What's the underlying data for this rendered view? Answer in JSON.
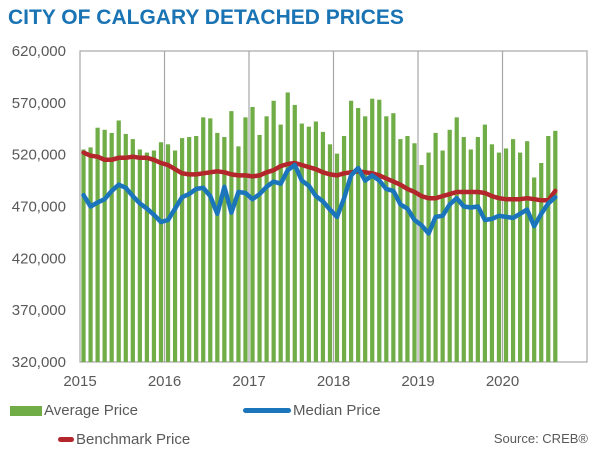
{
  "title": "CITY OF CALGARY DETACHED PRICES",
  "source": "Source: CREB®",
  "colors": {
    "title": "#1a74b4",
    "average": "#70ad47",
    "median": "#1b75bb",
    "benchmark": "#b3262c",
    "grid": "#a6a6a6",
    "text": "#595959"
  },
  "chart_data": {
    "type": "bar",
    "title": "CITY OF CALGARY DETACHED PRICES",
    "xlabel": "",
    "ylabel": "",
    "ylim": [
      320000,
      620000
    ],
    "yticks": [
      "620,000",
      "570,000",
      "520,000",
      "470,000",
      "420,000",
      "370,000",
      "320,000"
    ],
    "ytick_values": [
      620000,
      570000,
      520000,
      470000,
      420000,
      370000,
      320000
    ],
    "xticks": [
      "2015",
      "2016",
      "2017",
      "2018",
      "2019",
      "2020"
    ],
    "x_start": "2015-01",
    "x_end": "2020-07",
    "frequency": "monthly",
    "grid": "vertical year dividers",
    "legend": "bottom",
    "series": [
      {
        "name": "Average Price",
        "type": "bar",
        "values": [
          525000,
          527000,
          546000,
          544000,
          541000,
          553000,
          540000,
          535000,
          525000,
          522000,
          524000,
          532000,
          530000,
          524000,
          536000,
          537000,
          538000,
          556000,
          555000,
          541000,
          537000,
          562000,
          528000,
          556000,
          566000,
          539000,
          557000,
          572000,
          549000,
          580000,
          568000,
          550000,
          547000,
          552000,
          542000,
          530000,
          521000,
          538000,
          572000,
          565000,
          557000,
          574000,
          573000,
          557000,
          560000,
          535000,
          538000,
          531000,
          510000,
          522000,
          541000,
          524000,
          544000,
          556000,
          537000,
          525000,
          537000,
          549000,
          530000,
          522000,
          526000,
          535000,
          522000,
          533000,
          498000,
          512000,
          538000,
          543000
        ]
      },
      {
        "name": "Median Price",
        "type": "line",
        "values": [
          481000,
          470000,
          474000,
          477000,
          485000,
          491000,
          488000,
          480000,
          473000,
          468000,
          462000,
          455000,
          457000,
          468000,
          479000,
          482000,
          487000,
          488000,
          480000,
          463000,
          489000,
          464000,
          484000,
          483000,
          477000,
          482000,
          489000,
          494000,
          492000,
          505000,
          510000,
          495000,
          490000,
          480000,
          475000,
          467000,
          460000,
          478000,
          500000,
          507000,
          495000,
          500000,
          495000,
          487000,
          485000,
          472000,
          468000,
          457000,
          452000,
          444000,
          460000,
          461000,
          472000,
          478000,
          470000,
          469000,
          470000,
          457000,
          458000,
          461000,
          460000,
          459000,
          463000,
          467000,
          451000,
          463000,
          473000,
          479000
        ]
      },
      {
        "name": "Benchmark Price",
        "type": "line",
        "values": [
          522000,
          519000,
          518000,
          515000,
          515000,
          517000,
          517000,
          518000,
          517000,
          517000,
          515000,
          512000,
          510000,
          506000,
          502000,
          501000,
          501000,
          502000,
          503000,
          504000,
          503000,
          501000,
          500000,
          500000,
          499000,
          500000,
          503000,
          505000,
          509000,
          511000,
          512000,
          510000,
          508000,
          506000,
          503000,
          501000,
          500000,
          502000,
          503000,
          504000,
          503000,
          502000,
          500000,
          497000,
          494000,
          491000,
          487000,
          484000,
          480000,
          478000,
          478000,
          480000,
          482000,
          484000,
          484000,
          484000,
          484000,
          483000,
          480000,
          478000,
          477000,
          477000,
          477000,
          478000,
          477000,
          476000,
          476000,
          485000
        ]
      }
    ]
  }
}
